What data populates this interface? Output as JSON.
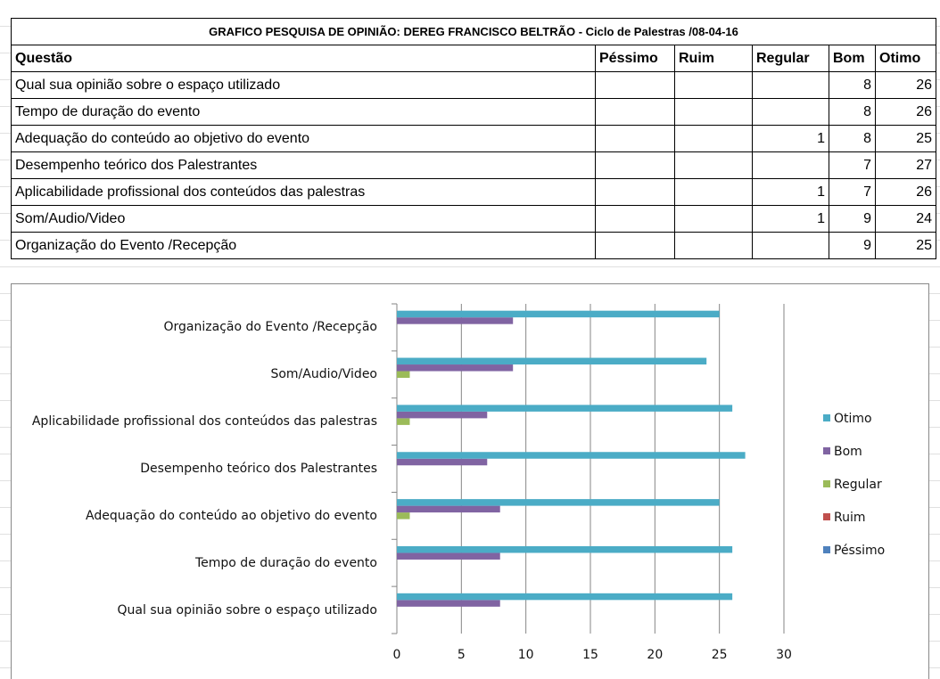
{
  "table": {
    "title": "GRAFICO PESQUISA DE OPINIÃO: DEREG FRANCISCO BELTRÃO - Ciclo de Palestras /08-04-16",
    "headers": [
      "Questão",
      "Péssimo",
      "Ruim",
      "Regular",
      "Bom",
      "Otimo"
    ],
    "rows": [
      [
        "Qual sua opinião sobre o espaço utilizado",
        null,
        null,
        null,
        8,
        26
      ],
      [
        "Tempo de duração do evento",
        null,
        null,
        null,
        8,
        26
      ],
      [
        "Adequação do conteúdo ao objetivo do evento",
        null,
        null,
        1,
        8,
        25
      ],
      [
        "Desempenho teórico dos Palestrantes",
        null,
        null,
        null,
        7,
        27
      ],
      [
        "Aplicabilidade profissional dos conteúdos das palestras",
        null,
        null,
        1,
        7,
        26
      ],
      [
        "Som/Audio/Video",
        null,
        null,
        1,
        9,
        24
      ],
      [
        "Organização do Evento /Recepção",
        null,
        null,
        null,
        9,
        25
      ]
    ]
  },
  "chart_data": {
    "type": "bar",
    "orientation": "horizontal",
    "categories": [
      "Qual sua opinião sobre o espaço utilizado",
      "Tempo de duração do evento",
      "Adequação do conteúdo ao objetivo do evento",
      "Desempenho teórico dos Palestrantes",
      "Aplicabilidade profissional dos conteúdos das palestras",
      "Som/Audio/Video",
      "Organização do Evento /Recepção"
    ],
    "series": [
      {
        "name": "Péssimo",
        "color": "#4f81bd",
        "values": [
          null,
          null,
          null,
          null,
          null,
          null,
          null
        ]
      },
      {
        "name": "Ruim",
        "color": "#c0504d",
        "values": [
          null,
          null,
          null,
          null,
          null,
          null,
          null
        ]
      },
      {
        "name": "Regular",
        "color": "#9bbb59",
        "values": [
          null,
          null,
          1,
          null,
          1,
          1,
          null
        ]
      },
      {
        "name": "Bom",
        "color": "#8064a2",
        "values": [
          8,
          8,
          8,
          7,
          7,
          9,
          9
        ]
      },
      {
        "name": "Otimo",
        "color": "#4bacc6",
        "values": [
          26,
          26,
          25,
          27,
          26,
          24,
          25
        ]
      }
    ],
    "xlim": [
      0,
      30
    ],
    "xticks": [
      0,
      5,
      10,
      15,
      20,
      25,
      30
    ],
    "grid": true,
    "legend": "right"
  }
}
